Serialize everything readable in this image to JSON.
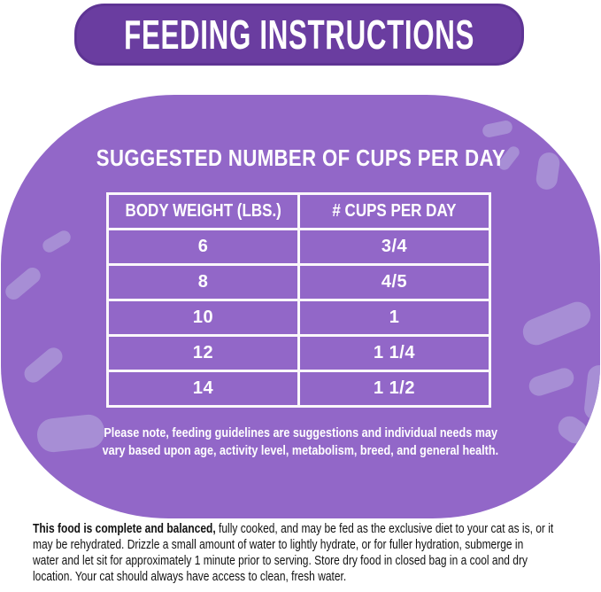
{
  "banner": {
    "title": "FEEDING INSTRUCTIONS"
  },
  "panel": {
    "heading": "SUGGESTED NUMBER OF CUPS PER DAY",
    "table": {
      "headers": [
        "BODY WEIGHT (LBS.)",
        "# CUPS PER DAY"
      ],
      "rows": [
        [
          "6",
          "3/4"
        ],
        [
          "8",
          "4/5"
        ],
        [
          "10",
          "1"
        ],
        [
          "12",
          "1 1/4"
        ],
        [
          "14",
          "1 1/2"
        ]
      ]
    },
    "note_lines": [
      "Please note, feeding guidelines are suggestions and individual needs may",
      "vary based upon age, activity level, metabolism, breed, and general health."
    ]
  },
  "footer": {
    "lines": [
      {
        "bold": "This food is complete and balanced,",
        "text": " fully cooked, and may be fed as the exclusive diet to your cat as is, or it"
      },
      {
        "text": "may be rehydrated. Drizzle a small amount of water to lightly hydrate, or for fuller hydration, submerge in"
      },
      {
        "text": "water and let sit for approximately 1 minute prior to serving. Store dry food in closed bag in a cool and dry"
      },
      {
        "text": "location. Your cat should always have access to clean, fresh water."
      }
    ]
  },
  "colors": {
    "banner_purple": "#6a3da0",
    "banner_edge": "#5e3494",
    "panel_purple": "#9267c8",
    "spot_light_purple": "#a78ed5",
    "table_line_white": "#faf7fb",
    "text_white": "#ffffff",
    "body_text": "#111111",
    "background": "#ffffff"
  }
}
